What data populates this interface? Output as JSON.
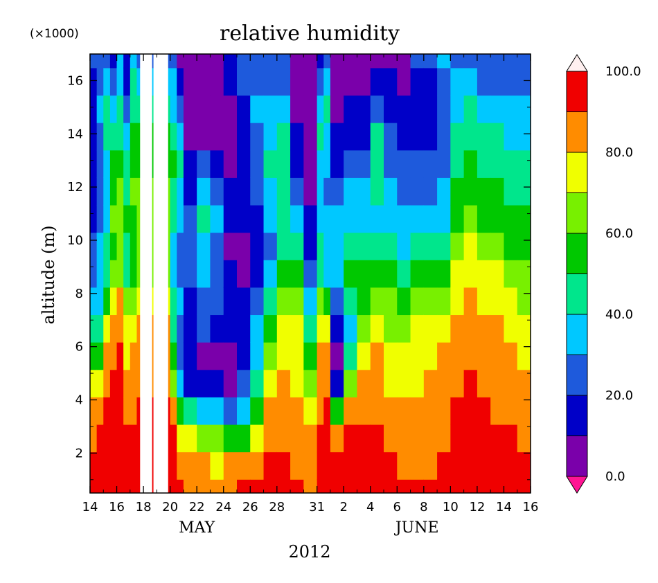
{
  "chart_data": {
    "type": "heatmap",
    "title": "relative humidity",
    "ylabel": "altitude (m)",
    "y_multiplier": "(×1000)",
    "ylim": [
      0.5,
      17.0
    ],
    "ytick_values": [
      2,
      4,
      6,
      8,
      10,
      12,
      14,
      16
    ],
    "ytick_labels": [
      "2",
      "4",
      "6",
      "8",
      "10",
      "12",
      "14",
      "16"
    ],
    "xlim_days": [
      0,
      33
    ],
    "xtick_days": [
      0,
      2,
      4,
      6,
      8,
      10,
      12,
      14,
      17,
      19,
      21,
      23,
      25,
      27,
      29,
      31,
      33
    ],
    "xtick_labels": [
      "14",
      "16",
      "18",
      "20",
      "22",
      "24",
      "26",
      "28",
      "31",
      "2",
      "4",
      "6",
      "8",
      "10",
      "12",
      "14",
      "16"
    ],
    "month_labels": [
      {
        "label": "MAY",
        "day": 8
      },
      {
        "label": "JUNE",
        "day": 24.5
      }
    ],
    "year_label": "2012",
    "colorbar": {
      "levels": [
        0,
        10,
        20,
        30,
        40,
        50,
        60,
        70,
        80,
        90,
        100
      ],
      "tick_labels": [
        "0.0",
        "20.0",
        "40.0",
        "60.0",
        "80.0",
        "100.0"
      ],
      "tick_values": [
        0,
        20,
        40,
        60,
        80,
        100
      ],
      "colors": [
        "#7a00aa",
        "#0000c8",
        "#1e5adc",
        "#00c8ff",
        "#00e68c",
        "#00c800",
        "#78f000",
        "#f0ff00",
        "#ff8c00",
        "#f00000"
      ],
      "under_color": "#ff1493",
      "over_color": "#fff0f0"
    },
    "profiles": [
      {
        "day": 0.0,
        "rh": [
          90,
          92,
          85,
          80,
          70,
          50,
          40,
          30,
          25,
          20,
          15,
          15,
          10,
          10,
          15,
          15,
          20
        ]
      },
      {
        "day": 0.5,
        "rh": [
          95,
          95,
          90,
          85,
          75,
          55,
          45,
          35,
          30,
          30,
          25,
          20,
          20,
          20,
          30,
          20,
          20
        ]
      },
      {
        "day": 1.0,
        "rh": [
          95,
          95,
          92,
          90,
          85,
          80,
          70,
          55,
          45,
          40,
          35,
          30,
          35,
          40,
          45,
          30,
          20
        ]
      },
      {
        "day": 1.5,
        "rh": [
          95,
          95,
          95,
          92,
          90,
          85,
          80,
          70,
          60,
          55,
          60,
          55,
          50,
          40,
          35,
          20,
          15
        ]
      },
      {
        "day": 2.0,
        "rh": [
          95,
          95,
          95,
          95,
          90,
          90,
          85,
          80,
          65,
          60,
          65,
          60,
          50,
          45,
          40,
          30,
          30
        ]
      },
      {
        "day": 2.5,
        "rh": [
          95,
          95,
          90,
          85,
          80,
          75,
          70,
          60,
          45,
          40,
          50,
          45,
          40,
          30,
          25,
          15,
          10
        ]
      },
      {
        "day": 3.0,
        "rh": [
          92,
          92,
          90,
          88,
          85,
          80,
          75,
          65,
          55,
          50,
          55,
          60,
          55,
          50,
          45,
          40,
          35
        ]
      },
      {
        "day": 3.5,
        "rh": [
          95,
          95,
          92,
          90,
          88,
          85,
          80,
          72,
          65,
          60,
          65,
          62,
          55,
          50,
          40,
          30,
          20
        ]
      },
      {
        "day": 6.0,
        "rh": [
          95,
          95,
          92,
          85,
          60,
          50,
          45,
          40,
          35,
          30,
          40,
          45,
          55,
          45,
          35,
          30,
          20
        ]
      },
      {
        "day": 6.5,
        "rh": [
          90,
          88,
          70,
          50,
          30,
          20,
          25,
          30,
          25,
          25,
          30,
          35,
          40,
          30,
          20,
          10,
          5
        ]
      },
      {
        "day": 7.0,
        "rh": [
          88,
          85,
          70,
          40,
          15,
          10,
          10,
          15,
          20,
          25,
          20,
          15,
          10,
          5,
          5,
          5,
          5
        ]
      },
      {
        "day": 8.0,
        "rh": [
          85,
          80,
          65,
          35,
          10,
          5,
          20,
          25,
          30,
          35,
          40,
          35,
          20,
          5,
          5,
          5,
          5
        ]
      },
      {
        "day": 9.0,
        "rh": [
          80,
          75,
          60,
          30,
          10,
          5,
          15,
          20,
          25,
          25,
          30,
          20,
          10,
          5,
          5,
          5,
          5
        ]
      },
      {
        "day": 10.0,
        "rh": [
          85,
          80,
          55,
          25,
          8,
          5,
          10,
          15,
          10,
          8,
          10,
          10,
          5,
          5,
          5,
          10,
          15
        ]
      },
      {
        "day": 11.0,
        "rh": [
          90,
          85,
          55,
          35,
          20,
          15,
          15,
          10,
          5,
          5,
          10,
          15,
          10,
          10,
          15,
          20,
          25
        ]
      },
      {
        "day": 12.0,
        "rh": [
          90,
          88,
          75,
          55,
          45,
          35,
          30,
          20,
          10,
          10,
          15,
          20,
          25,
          25,
          30,
          25,
          20
        ]
      },
      {
        "day": 13.0,
        "rh": [
          92,
          90,
          85,
          80,
          75,
          65,
          55,
          45,
          30,
          25,
          30,
          35,
          40,
          35,
          30,
          25,
          20
        ]
      },
      {
        "day": 14.0,
        "rh": [
          92,
          90,
          88,
          85,
          80,
          78,
          70,
          60,
          50,
          45,
          40,
          40,
          45,
          40,
          30,
          25,
          20
        ]
      },
      {
        "day": 15.0,
        "rh": [
          90,
          88,
          85,
          82,
          78,
          75,
          70,
          65,
          55,
          45,
          35,
          25,
          15,
          10,
          5,
          5,
          5
        ]
      },
      {
        "day": 16.0,
        "rh": [
          88,
          85,
          80,
          70,
          60,
          50,
          40,
          30,
          20,
          15,
          10,
          8,
          5,
          5,
          5,
          5,
          5
        ]
      },
      {
        "day": 17.0,
        "rh": [
          92,
          92,
          90,
          88,
          85,
          80,
          75,
          60,
          45,
          40,
          35,
          30,
          35,
          40,
          30,
          20,
          15
        ]
      },
      {
        "day": 17.5,
        "rh": [
          95,
          95,
          92,
          90,
          88,
          85,
          70,
          50,
          35,
          30,
          30,
          25,
          30,
          35,
          40,
          30,
          20
        ]
      },
      {
        "day": 18.0,
        "rh": [
          92,
          90,
          85,
          55,
          10,
          5,
          10,
          20,
          30,
          35,
          30,
          20,
          15,
          10,
          8,
          5,
          5
        ]
      },
      {
        "day": 19.0,
        "rh": [
          95,
          95,
          90,
          80,
          60,
          40,
          35,
          45,
          50,
          45,
          35,
          30,
          25,
          15,
          10,
          5,
          5
        ]
      },
      {
        "day": 20.0,
        "rh": [
          95,
          92,
          90,
          85,
          80,
          70,
          60,
          55,
          50,
          40,
          35,
          30,
          25,
          15,
          10,
          5,
          5
        ]
      },
      {
        "day": 21.0,
        "rh": [
          95,
          92,
          90,
          88,
          85,
          80,
          70,
          60,
          55,
          40,
          35,
          40,
          45,
          40,
          20,
          10,
          5
        ]
      },
      {
        "day": 22.0,
        "rh": [
          92,
          90,
          85,
          80,
          75,
          70,
          65,
          60,
          50,
          40,
          35,
          30,
          25,
          20,
          15,
          10,
          8
        ]
      },
      {
        "day": 23.0,
        "rh": [
          92,
          88,
          85,
          80,
          75,
          72,
          65,
          55,
          45,
          35,
          30,
          25,
          20,
          15,
          10,
          8,
          5
        ]
      },
      {
        "day": 24.0,
        "rh": [
          90,
          88,
          85,
          82,
          78,
          75,
          70,
          60,
          50,
          40,
          30,
          25,
          20,
          15,
          12,
          10,
          20
        ]
      },
      {
        "day": 25.0,
        "rh": [
          90,
          88,
          85,
          85,
          80,
          78,
          70,
          62,
          50,
          40,
          30,
          25,
          20,
          15,
          12,
          15,
          20
        ]
      },
      {
        "day": 26.0,
        "rh": [
          92,
          90,
          88,
          85,
          82,
          80,
          75,
          68,
          55,
          45,
          35,
          30,
          25,
          20,
          20,
          25,
          30
        ]
      },
      {
        "day": 27.0,
        "rh": [
          95,
          95,
          92,
          90,
          88,
          85,
          82,
          75,
          70,
          60,
          55,
          50,
          45,
          40,
          35,
          30,
          25
        ]
      },
      {
        "day": 28.0,
        "rh": [
          95,
          95,
          92,
          90,
          90,
          88,
          85,
          80,
          75,
          70,
          60,
          55,
          50,
          45,
          40,
          30,
          20
        ]
      },
      {
        "day": 29.0,
        "rh": [
          95,
          95,
          92,
          90,
          88,
          85,
          80,
          78,
          72,
          65,
          55,
          50,
          45,
          40,
          35,
          25,
          20
        ]
      },
      {
        "day": 30.0,
        "rh": [
          95,
          92,
          90,
          88,
          85,
          82,
          80,
          75,
          70,
          65,
          55,
          50,
          45,
          40,
          30,
          25,
          20
        ]
      },
      {
        "day": 31.0,
        "rh": [
          95,
          95,
          92,
          88,
          85,
          80,
          75,
          70,
          65,
          55,
          50,
          45,
          40,
          35,
          30,
          25,
          20
        ]
      },
      {
        "day": 32.0,
        "rh": [
          92,
          90,
          88,
          85,
          82,
          78,
          72,
          68,
          60,
          55,
          50,
          45,
          40,
          35,
          30,
          25,
          20
        ]
      },
      {
        "day": 33.0,
        "rh": [
          92,
          90,
          88,
          85,
          82,
          78,
          72,
          68,
          60,
          55,
          50,
          45,
          40,
          35,
          30,
          25,
          20
        ]
      }
    ]
  }
}
